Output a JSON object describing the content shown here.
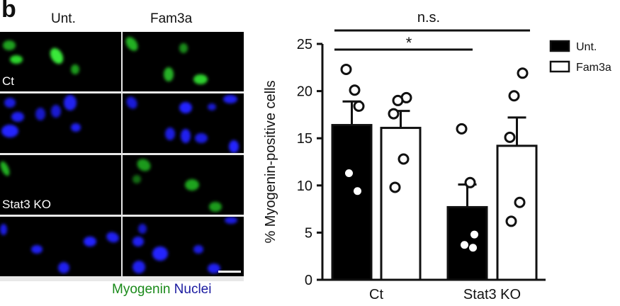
{
  "panel": {
    "letter": "b",
    "column_headers": [
      "Unt.",
      "Fam3a"
    ],
    "row_labels": [
      "Ct",
      "Stat3 KO"
    ],
    "stain_legend": {
      "myogenin": "Myogenin",
      "nuclei": "Nuclei",
      "myogenin_color": "#1a8a1a",
      "nuclei_color": "#1a1aa0"
    },
    "channel_colors": {
      "green": "#22cc22",
      "blue": "#1a1aff"
    }
  },
  "chart_data": {
    "type": "bar",
    "title": "",
    "xlabel": "",
    "ylabel": "% Myogenin-positive cells",
    "ylim": [
      0,
      25
    ],
    "yticks": [
      0,
      5,
      10,
      15,
      20,
      25
    ],
    "categories": [
      "Ct",
      "Stat3 KO"
    ],
    "legend": {
      "position": "right",
      "entries": [
        "Unt.",
        "Fam3a"
      ]
    },
    "grid": false,
    "series": [
      {
        "name": "Unt.",
        "fill": "#000000",
        "values": [
          16.4,
          7.7
        ],
        "error_sem": [
          2.5,
          2.4
        ],
        "points": [
          [
            22.3,
            20.1,
            18.4,
            11.3,
            9.4
          ],
          [
            16.0,
            10.3,
            4.8,
            3.7,
            3.4
          ]
        ]
      },
      {
        "name": "Fam3a",
        "fill": "#ffffff",
        "values": [
          16.1,
          14.2
        ],
        "error_sem": [
          1.8,
          3.0
        ],
        "points": [
          [
            19.3,
            19.0,
            17.6,
            12.8,
            9.8
          ],
          [
            21.9,
            19.5,
            15.1,
            8.2,
            6.2
          ]
        ]
      }
    ],
    "annotations": [
      {
        "text": "n.s.",
        "from": "Ct Unt.",
        "to": "Stat3 KO Fam3a"
      },
      {
        "text": "*",
        "from": "Ct Unt.",
        "to": "Stat3 KO Unt."
      }
    ]
  }
}
